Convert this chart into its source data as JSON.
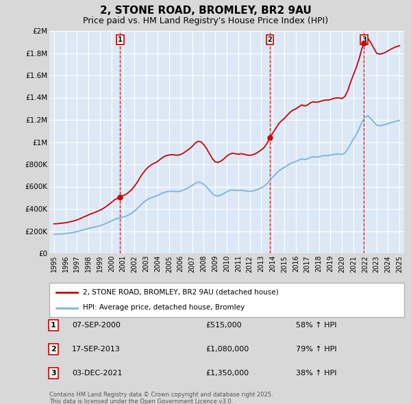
{
  "title": "2, STONE ROAD, BROMLEY, BR2 9AU",
  "subtitle": "Price paid vs. HM Land Registry's House Price Index (HPI)",
  "title_fontsize": 11,
  "subtitle_fontsize": 9,
  "hpi_color": "#7ab4d8",
  "price_color": "#cc0000",
  "background_color": "#d8d8d8",
  "plot_bg_color": "#dce8f5",
  "grid_color": "#ffffff",
  "legend_label_price": "2, STONE ROAD, BROMLEY, BR2 9AU (detached house)",
  "legend_label_hpi": "HPI: Average price, detached house, Bromley",
  "transactions": [
    {
      "num": 1,
      "date": "07-SEP-2000",
      "price": 515000,
      "hpi_pct": "58% ↑ HPI",
      "year": 2000.75
    },
    {
      "num": 2,
      "date": "17-SEP-2013",
      "price": 1080000,
      "hpi_pct": "79% ↑ HPI",
      "year": 2013.75
    },
    {
      "num": 3,
      "date": "03-DEC-2021",
      "price": 1350000,
      "hpi_pct": "38% ↑ HPI",
      "year": 2021.92
    }
  ],
  "footnote": "Contains HM Land Registry data © Crown copyright and database right 2025.\nThis data is licensed under the Open Government Licence v3.0.",
  "ylim": [
    0,
    2000000
  ],
  "yticks": [
    0,
    200000,
    400000,
    600000,
    800000,
    1000000,
    1200000,
    1400000,
    1600000,
    1800000,
    2000000
  ],
  "ytick_labels": [
    "£0",
    "£200K",
    "£400K",
    "£600K",
    "£800K",
    "£1M",
    "£1.2M",
    "£1.4M",
    "£1.6M",
    "£1.8M",
    "£2M"
  ],
  "hpi_data_years": [
    1995.0,
    1995.25,
    1995.5,
    1995.75,
    1996.0,
    1996.25,
    1996.5,
    1996.75,
    1997.0,
    1997.25,
    1997.5,
    1997.75,
    1998.0,
    1998.25,
    1998.5,
    1998.75,
    1999.0,
    1999.25,
    1999.5,
    1999.75,
    2000.0,
    2000.25,
    2000.5,
    2000.75,
    2001.0,
    2001.25,
    2001.5,
    2001.75,
    2002.0,
    2002.25,
    2002.5,
    2002.75,
    2003.0,
    2003.25,
    2003.5,
    2003.75,
    2004.0,
    2004.25,
    2004.5,
    2004.75,
    2005.0,
    2005.25,
    2005.5,
    2005.75,
    2006.0,
    2006.25,
    2006.5,
    2006.75,
    2007.0,
    2007.25,
    2007.5,
    2007.75,
    2008.0,
    2008.25,
    2008.5,
    2008.75,
    2009.0,
    2009.25,
    2009.5,
    2009.75,
    2010.0,
    2010.25,
    2010.5,
    2010.75,
    2011.0,
    2011.25,
    2011.5,
    2011.75,
    2012.0,
    2012.25,
    2012.5,
    2012.75,
    2013.0,
    2013.25,
    2013.5,
    2013.75,
    2014.0,
    2014.25,
    2014.5,
    2014.75,
    2015.0,
    2015.25,
    2015.5,
    2015.75,
    2016.0,
    2016.25,
    2016.5,
    2016.75,
    2017.0,
    2017.25,
    2017.5,
    2017.75,
    2018.0,
    2018.25,
    2018.5,
    2018.75,
    2019.0,
    2019.25,
    2019.5,
    2019.75,
    2020.0,
    2020.25,
    2020.5,
    2020.75,
    2021.0,
    2021.25,
    2021.5,
    2021.75,
    2022.0,
    2022.25,
    2022.5,
    2022.75,
    2023.0,
    2023.25,
    2023.5,
    2023.75,
    2024.0,
    2024.25,
    2024.5,
    2024.75,
    2025.0
  ],
  "hpi_data_values": [
    170000,
    172000,
    173000,
    175000,
    178000,
    181000,
    185000,
    189000,
    195000,
    202000,
    210000,
    217000,
    224000,
    230000,
    236000,
    242000,
    249000,
    258000,
    268000,
    280000,
    292000,
    305000,
    313000,
    320000,
    327000,
    334000,
    346000,
    362000,
    381000,
    404000,
    432000,
    456000,
    476000,
    492000,
    503000,
    511000,
    520000,
    534000,
    546000,
    553000,
    557000,
    559000,
    557000,
    555000,
    560000,
    570000,
    582000,
    595000,
    610000,
    628000,
    640000,
    637000,
    621000,
    597000,
    567000,
    537000,
    519000,
    517000,
    524000,
    537000,
    553000,
    565000,
    570000,
    566000,
    564000,
    567000,
    564000,
    559000,
    557000,
    561000,
    567000,
    577000,
    589000,
    603000,
    626000,
    657000,
    686000,
    713000,
    739000,
    758000,
    772000,
    790000,
    805000,
    817000,
    825000,
    837000,
    849000,
    842000,
    849000,
    862000,
    868000,
    865000,
    868000,
    875000,
    879000,
    879000,
    882000,
    889000,
    892000,
    892000,
    888000,
    902000,
    935000,
    983000,
    1028000,
    1068000,
    1121000,
    1182000,
    1224000,
    1236000,
    1212000,
    1182000,
    1153000,
    1147000,
    1151000,
    1157000,
    1166000,
    1175000,
    1183000,
    1190000,
    1195000
  ],
  "price_data_years": [
    1995.0,
    1995.25,
    1995.5,
    1995.75,
    1996.0,
    1996.25,
    1996.5,
    1996.75,
    1997.0,
    1997.25,
    1997.5,
    1997.75,
    1998.0,
    1998.25,
    1998.5,
    1998.75,
    1999.0,
    1999.25,
    1999.5,
    1999.75,
    2000.0,
    2000.25,
    2000.5,
    2000.75,
    2001.0,
    2001.25,
    2001.5,
    2001.75,
    2002.0,
    2002.25,
    2002.5,
    2002.75,
    2003.0,
    2003.25,
    2003.5,
    2003.75,
    2004.0,
    2004.25,
    2004.5,
    2004.75,
    2005.0,
    2005.25,
    2005.5,
    2005.75,
    2006.0,
    2006.25,
    2006.5,
    2006.75,
    2007.0,
    2007.25,
    2007.5,
    2007.75,
    2008.0,
    2008.25,
    2008.5,
    2008.75,
    2009.0,
    2009.25,
    2009.5,
    2009.75,
    2010.0,
    2010.25,
    2010.5,
    2010.75,
    2011.0,
    2011.25,
    2011.5,
    2011.75,
    2012.0,
    2012.25,
    2012.5,
    2012.75,
    2013.0,
    2013.25,
    2013.5,
    2013.75,
    2014.0,
    2014.25,
    2014.5,
    2014.75,
    2015.0,
    2015.25,
    2015.5,
    2015.75,
    2016.0,
    2016.25,
    2016.5,
    2016.75,
    2017.0,
    2017.25,
    2017.5,
    2017.75,
    2018.0,
    2018.25,
    2018.5,
    2018.75,
    2019.0,
    2019.25,
    2019.5,
    2019.75,
    2020.0,
    2020.25,
    2020.5,
    2020.75,
    2021.0,
    2021.25,
    2021.5,
    2021.75,
    2022.0,
    2022.25,
    2022.5,
    2022.75,
    2023.0,
    2023.25,
    2023.5,
    2023.75,
    2024.0,
    2024.25,
    2024.5,
    2024.75,
    2025.0
  ],
  "price_data_values": [
    265000,
    267000,
    269000,
    272000,
    275000,
    280000,
    286000,
    292000,
    300000,
    311000,
    323000,
    334000,
    346000,
    356000,
    366000,
    376000,
    388000,
    402000,
    418000,
    438000,
    458000,
    480000,
    494000,
    506000,
    518000,
    530000,
    550000,
    574000,
    605000,
    642000,
    686000,
    724000,
    756000,
    781000,
    799000,
    812000,
    826000,
    847000,
    866000,
    878000,
    884000,
    887000,
    884000,
    882000,
    888000,
    902000,
    920000,
    939000,
    961000,
    989000,
    1007000,
    1003000,
    978000,
    942000,
    896000,
    851000,
    822000,
    818000,
    829000,
    849000,
    874000,
    891000,
    900000,
    895000,
    891000,
    896000,
    891000,
    884000,
    881000,
    886000,
    896000,
    912000,
    930000,
    952000,
    990000,
    1038000,
    1083000,
    1122000,
    1163000,
    1191000,
    1212000,
    1241000,
    1268000,
    1287000,
    1299000,
    1316000,
    1334000,
    1324000,
    1333000,
    1352000,
    1362000,
    1358000,
    1362000,
    1370000,
    1377000,
    1377000,
    1381000,
    1392000,
    1397000,
    1397000,
    1391000,
    1410000,
    1460000,
    1538000,
    1607000,
    1672000,
    1751000,
    1847000,
    1913000,
    1933000,
    1895000,
    1847000,
    1800000,
    1790000,
    1796000,
    1805000,
    1820000,
    1835000,
    1848000,
    1858000,
    1866000
  ]
}
